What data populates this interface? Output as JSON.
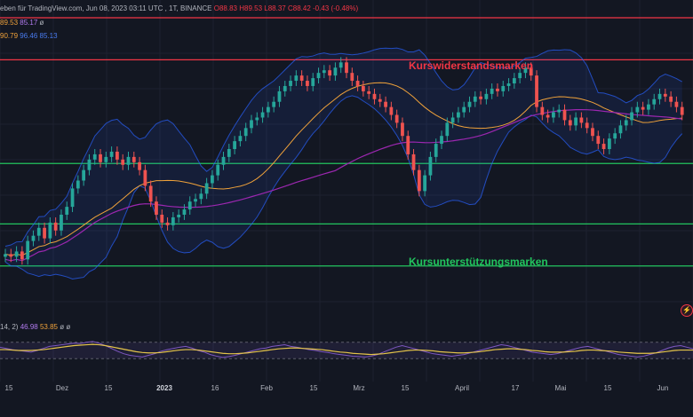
{
  "header": {
    "line1": {
      "source": "eben für TradingView.com,  Jun 08, 2023 03:11 UTC",
      "symbol": ", 1T, BINANCE",
      "open": "O88.83",
      "high": "H89.53",
      "low": "L88.37",
      "close": "C88.42",
      "change": "-0.43 (-0.48%)"
    },
    "line2": {
      "v1": "89.53",
      "v2": "85.17",
      "v3": "ø"
    },
    "line3": {
      "v1": "90.79",
      "v2": "96.46",
      "v3": "85.13"
    }
  },
  "annotations": {
    "resistance": "Kurswiderstandsmarken",
    "support": "Kursunterstützungsmarken"
  },
  "rsi": {
    "params": "14, 2)",
    "v1": "46.98",
    "v2": "53.85",
    "v3": "ø",
    "v4": "ø"
  },
  "colors": {
    "background": "#131722",
    "candle_up": "#26a69a",
    "candle_down": "#ef5350",
    "resistance_line": "#f23645",
    "support_line": "#22c55e",
    "bollinger": "#2962ff",
    "sma_orange": "#f0a23a",
    "sma_purple": "#9c27b0",
    "rsi_line": "#7e57c2",
    "rsi_ma": "#e5c54a"
  },
  "icons": {
    "alert": "bolt-icon"
  },
  "chart_data": {
    "type": "candlestick",
    "x_axis_ticks": [
      "15",
      "Dez",
      "15",
      "2023",
      "16",
      "Feb",
      "15",
      "Mrz",
      "15",
      "April",
      "17",
      "Mai",
      "15",
      "Jun"
    ],
    "horizontal_levels": {
      "resistance": [
        1.0,
        0.84
      ],
      "support": [
        0.445,
        0.215,
        0.055
      ]
    },
    "price_range_normalized": [
      0,
      1
    ],
    "candle_closes_normalized": [
      0.1,
      0.09,
      0.11,
      0.08,
      0.15,
      0.17,
      0.2,
      0.16,
      0.22,
      0.19,
      0.25,
      0.28,
      0.35,
      0.38,
      0.42,
      0.46,
      0.48,
      0.45,
      0.47,
      0.49,
      0.46,
      0.44,
      0.47,
      0.45,
      0.42,
      0.36,
      0.3,
      0.25,
      0.22,
      0.21,
      0.24,
      0.25,
      0.27,
      0.3,
      0.31,
      0.33,
      0.37,
      0.4,
      0.44,
      0.47,
      0.5,
      0.53,
      0.55,
      0.58,
      0.61,
      0.62,
      0.64,
      0.66,
      0.68,
      0.72,
      0.74,
      0.76,
      0.78,
      0.76,
      0.74,
      0.77,
      0.79,
      0.8,
      0.78,
      0.81,
      0.83,
      0.79,
      0.76,
      0.74,
      0.72,
      0.71,
      0.69,
      0.68,
      0.66,
      0.63,
      0.6,
      0.55,
      0.48,
      0.42,
      0.34,
      0.4,
      0.47,
      0.52,
      0.55,
      0.6,
      0.62,
      0.64,
      0.66,
      0.68,
      0.7,
      0.69,
      0.71,
      0.73,
      0.72,
      0.74,
      0.75,
      0.77,
      0.79,
      0.81,
      0.78,
      0.66,
      0.63,
      0.62,
      0.64,
      0.65,
      0.61,
      0.59,
      0.62,
      0.6,
      0.58,
      0.55,
      0.52,
      0.5,
      0.54,
      0.56,
      0.59,
      0.61,
      0.64,
      0.66,
      0.65,
      0.67,
      0.69,
      0.71,
      0.7,
      0.68,
      0.66,
      0.63
    ],
    "rsi_range": [
      0,
      100
    ],
    "rsi_levels": [
      70,
      30
    ],
    "rsi_values": [
      58,
      55,
      52,
      50,
      48,
      46,
      50,
      55,
      60,
      62,
      64,
      66,
      68,
      67,
      70,
      72,
      68,
      62,
      55,
      48,
      42,
      38,
      36,
      34,
      38,
      42,
      48,
      52,
      55,
      58,
      60,
      56,
      50,
      46,
      40,
      36,
      33,
      35,
      38,
      42,
      46,
      50,
      54,
      56,
      60,
      62,
      64,
      60,
      58,
      55,
      52,
      50,
      47,
      45,
      42,
      40,
      38,
      36,
      35,
      34,
      36,
      40,
      46,
      52,
      58,
      62,
      58,
      54,
      50,
      46,
      42,
      40,
      38,
      36,
      38,
      40,
      44,
      48,
      52,
      56,
      60,
      64,
      62,
      58,
      54,
      50,
      46,
      44,
      42,
      40,
      42,
      46,
      50,
      54,
      58,
      60,
      56,
      52,
      48,
      44,
      40,
      38,
      36,
      34,
      36,
      40,
      44,
      50,
      56,
      60,
      62,
      58,
      54
    ],
    "rsi_ma_values": [
      52,
      52,
      51,
      50,
      50,
      50,
      51,
      52,
      54,
      56,
      58,
      60,
      62,
      63,
      64,
      65,
      64,
      62,
      59,
      56,
      53,
      50,
      47,
      45,
      44,
      44,
      45,
      47,
      49,
      51,
      52,
      52,
      51,
      49,
      47,
      45,
      43,
      42,
      42,
      43,
      44,
      46,
      48,
      50,
      52,
      54,
      55,
      56,
      56,
      55,
      54,
      53,
      52,
      50,
      48,
      46,
      45,
      43,
      42,
      41,
      40,
      41,
      42,
      44,
      46,
      48,
      50,
      51,
      51,
      50,
      49,
      47,
      46,
      45,
      44,
      44,
      45,
      46,
      48,
      50,
      52,
      53,
      54,
      54,
      53,
      52,
      50,
      49,
      47,
      46,
      46,
      46,
      47,
      48,
      50,
      51,
      51,
      50,
      49,
      48,
      46,
      45,
      44,
      43,
      43,
      43,
      44,
      46,
      48,
      50,
      51,
      51,
      51
    ]
  }
}
